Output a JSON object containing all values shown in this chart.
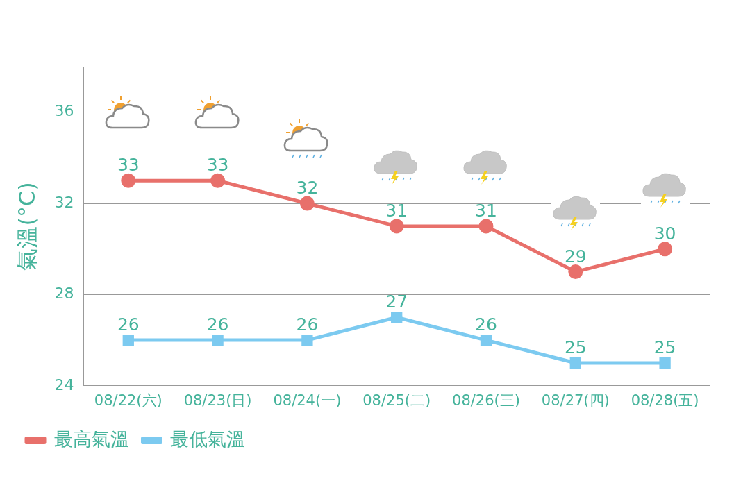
{
  "chart_data": {
    "type": "line",
    "ylabel": "氣溫(°C)",
    "categories": [
      "08/22(六)",
      "08/23(日)",
      "08/24(一)",
      "08/25(二)",
      "08/26(三)",
      "08/27(四)",
      "08/28(五)"
    ],
    "series": [
      {
        "name": "最高氣溫",
        "color": "#e8706b",
        "marker": "circle",
        "values": [
          33,
          33,
          32,
          31,
          31,
          29,
          30
        ]
      },
      {
        "name": "最低氣溫",
        "color": "#7ccaf0",
        "marker": "square",
        "values": [
          26,
          26,
          26,
          27,
          26,
          25,
          25
        ]
      }
    ],
    "ylim": [
      24,
      38
    ],
    "yticks": [
      24,
      28,
      32,
      36
    ],
    "grid": "y",
    "legend": "bottom",
    "data_labels": true,
    "line_style": "solid"
  }
}
